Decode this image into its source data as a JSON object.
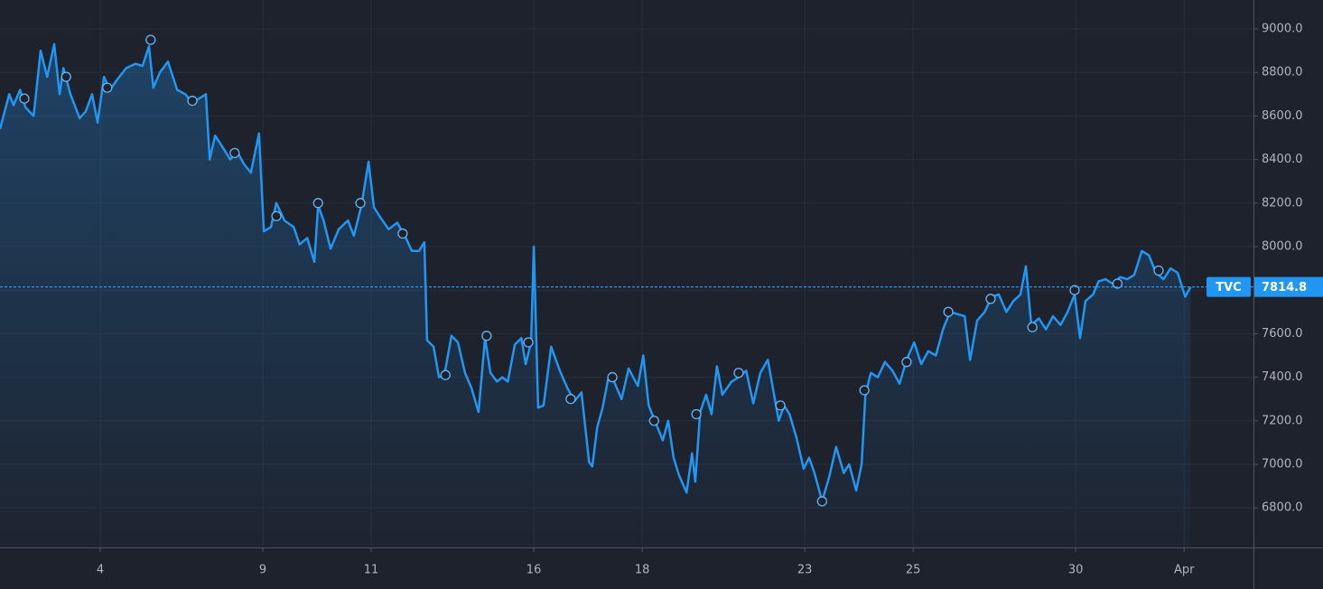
{
  "chart_data": {
    "type": "area",
    "color": "#2196f3",
    "grid": true,
    "x": [
      -1.85,
      -1.68,
      -1.6,
      -1.48,
      -1.38,
      -1.23,
      -1.1,
      -0.98,
      -0.85,
      -0.75,
      -0.68,
      -0.55,
      -0.38,
      -0.27,
      -0.15,
      -0.05,
      0.07,
      0.18,
      0.32,
      0.48,
      0.65,
      0.78,
      0.9,
      0.98,
      1.1,
      1.25,
      1.42,
      1.57,
      1.7,
      1.82,
      1.95,
      2.02,
      2.12,
      2.25,
      2.4,
      2.52,
      2.65,
      2.78,
      2.93,
      3.02,
      3.15,
      3.25,
      3.4,
      3.57,
      3.68,
      3.82,
      3.95,
      4.02,
      4.12,
      4.25,
      4.4,
      4.57,
      4.68,
      4.82,
      4.95,
      5.05,
      5.18,
      5.32,
      5.48,
      5.62,
      5.75,
      5.88,
      5.98,
      6.03,
      6.15,
      6.25,
      6.35,
      6.48,
      6.6,
      6.73,
      6.85,
      6.98,
      7.1,
      7.2,
      7.32,
      7.42,
      7.52,
      7.65,
      7.77,
      7.85,
      7.95,
      8,
      8.08,
      8.18,
      8.32,
      8.48,
      8.62,
      8.75,
      8.88,
      9.02,
      9.08,
      9.17,
      9.27,
      9.37,
      9.48,
      9.62,
      9.75,
      9.92,
      10.02,
      10.12,
      10.25,
      10.38,
      10.48,
      10.58,
      10.68,
      10.82,
      10.92,
      10.98,
      11.07,
      11.18,
      11.28,
      11.38,
      11.48,
      11.65,
      11.78,
      11.92,
      12.05,
      12.18,
      12.32,
      12.42,
      12.52,
      12.62,
      12.72,
      12.85,
      12.98,
      13.08,
      13.18,
      13.32,
      13.45,
      13.58,
      13.72,
      13.82,
      13.95,
      14.05,
      14.12,
      14.22,
      14.35,
      14.48,
      14.62,
      14.75,
      14.88,
      15.02,
      15.15,
      15.28,
      15.42,
      15.55,
      15.68,
      15.82,
      15.95,
      16.05,
      16.18,
      16.32,
      16.45,
      16.58,
      16.72,
      16.85,
      16.98,
      17.08,
      17.18,
      17.32,
      17.45,
      17.58,
      17.72,
      17.85,
      17.98,
      18.08,
      18.18,
      18.32,
      18.42,
      18.55,
      18.68,
      18.82,
      18.95,
      19.08,
      19.22,
      19.35,
      19.48,
      19.62,
      19.75,
      19.88,
      20.02,
      20.12
    ],
    "values": [
      8540,
      8700,
      8650,
      8720,
      8640,
      8600,
      8900,
      8780,
      8930,
      8700,
      8820,
      8700,
      8590,
      8620,
      8700,
      8570,
      8780,
      8720,
      8770,
      8820,
      8840,
      8830,
      8920,
      8730,
      8800,
      8850,
      8720,
      8700,
      8660,
      8680,
      8700,
      8400,
      8510,
      8460,
      8400,
      8440,
      8380,
      8340,
      8520,
      8070,
      8090,
      8200,
      8120,
      8090,
      8010,
      8040,
      7930,
      8190,
      8120,
      7990,
      8080,
      8120,
      8050,
      8190,
      8390,
      8180,
      8130,
      8080,
      8110,
      8050,
      7980,
      7980,
      8020,
      7570,
      7540,
      7400,
      7410,
      7590,
      7560,
      7420,
      7350,
      7240,
      7580,
      7420,
      7380,
      7400,
      7380,
      7550,
      7580,
      7460,
      7560,
      8000,
      7260,
      7270,
      7540,
      7430,
      7350,
      7290,
      7330,
      7010,
      6990,
      7170,
      7260,
      7390,
      7380,
      7300,
      7440,
      7360,
      7500,
      7270,
      7190,
      7110,
      7200,
      7030,
      6950,
      6870,
      7050,
      6920,
      7240,
      7320,
      7230,
      7450,
      7320,
      7380,
      7400,
      7430,
      7280,
      7420,
      7480,
      7340,
      7200,
      7270,
      7230,
      7120,
      6980,
      7030,
      6960,
      6830,
      6940,
      7080,
      6960,
      7000,
      6880,
      7000,
      7320,
      7420,
      7400,
      7470,
      7430,
      7370,
      7480,
      7560,
      7460,
      7520,
      7500,
      7620,
      7700,
      7690,
      7680,
      7480,
      7660,
      7700,
      7770,
      7780,
      7700,
      7750,
      7780,
      7910,
      7640,
      7670,
      7620,
      7680,
      7640,
      7700,
      7780,
      7580,
      7750,
      7780,
      7840,
      7850,
      7830,
      7860,
      7850,
      7870,
      7980,
      7960,
      7880,
      7850,
      7900,
      7880,
      7770,
      7815
    ],
    "events": {
      "x": [
        -1.4,
        -0.63,
        0.13,
        0.93,
        1.7,
        2.48,
        3.25,
        4.02,
        4.8,
        5.58,
        6.37,
        7.13,
        7.9,
        8.68,
        9.45,
        10.22,
        11,
        11.78,
        12.55,
        13.32,
        14.1,
        14.88,
        15.65,
        16.43,
        17.2,
        17.98,
        18.77,
        19.53
      ],
      "values": [
        8680,
        8780,
        8730,
        8950,
        8670,
        8430,
        8140,
        8200,
        8200,
        8060,
        7410,
        7590,
        7560,
        7300,
        7400,
        7200,
        7230,
        7420,
        7270,
        6830,
        7340,
        7470,
        7700,
        7760,
        7630,
        7800,
        7830,
        7890
      ]
    },
    "last_price": {
      "source": "TVC",
      "value": 7814.8
    },
    "xlim": [
      -1.85,
      21.28
    ],
    "xticks": [
      {
        "value": 0,
        "label": "4"
      },
      {
        "value": 3,
        "label": "9"
      },
      {
        "value": 5,
        "label": "11"
      },
      {
        "value": 8,
        "label": "16"
      },
      {
        "value": 10,
        "label": "18"
      },
      {
        "value": 13,
        "label": "23"
      },
      {
        "value": 15,
        "label": "25"
      },
      {
        "value": 18,
        "label": "30"
      },
      {
        "value": 20,
        "label": "Apr"
      }
    ],
    "ylim": [
      6618,
      9133
    ],
    "yticks": [
      {
        "value": 6800,
        "label": "6800.0"
      },
      {
        "value": 7000,
        "label": "7000.0"
      },
      {
        "value": 7200,
        "label": "7200.0"
      },
      {
        "value": 7400,
        "label": "7400.0"
      },
      {
        "value": 7600,
        "label": "7600.0"
      },
      {
        "value": 7800,
        "label": "7800.0"
      },
      {
        "value": 8000,
        "label": "8000.0"
      },
      {
        "value": 8200,
        "label": "8200.0"
      },
      {
        "value": 8400,
        "label": "8400.0"
      },
      {
        "value": 8600,
        "label": "8600.0"
      },
      {
        "value": 8800,
        "label": "8800.0"
      },
      {
        "value": 9000,
        "label": "9000.0"
      }
    ]
  }
}
